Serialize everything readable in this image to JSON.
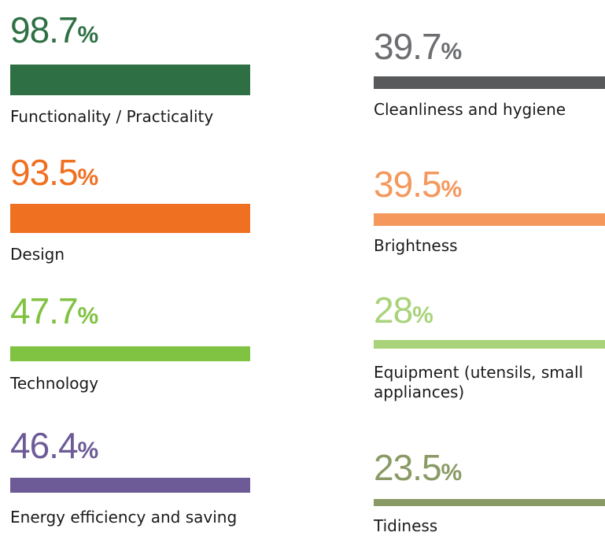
{
  "chart_data": {
    "type": "bar",
    "categories": [
      "Functionality / Practicality",
      "Design",
      "Technology",
      "Energy efficiency and saving",
      "Cleanliness and hygiene",
      "Brightness",
      "Equipment (utensils, small appliances)",
      "Tidiness"
    ],
    "values": [
      98.7,
      93.5,
      47.7,
      46.4,
      39.7,
      39.5,
      28,
      23.5
    ],
    "value_labels": [
      "98.7%",
      "93.5%",
      "47.7%",
      "46.4%",
      "39.7%",
      "39.5%",
      "28%",
      "23.5%"
    ],
    "colors": [
      "#2e7043",
      "#f07022",
      "#80c241",
      "#6d5b97",
      "#58595b",
      "#f4985c",
      "#a9d37a",
      "#8a9a66"
    ]
  }
}
